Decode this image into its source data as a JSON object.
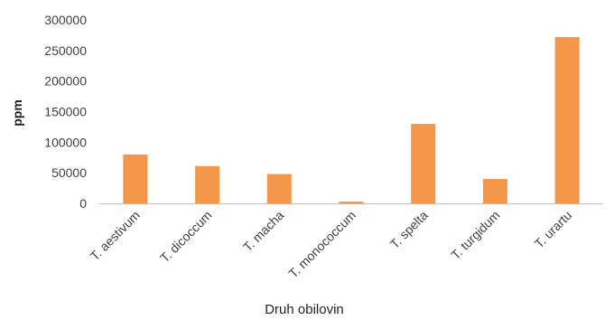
{
  "chart_data": {
    "type": "bar",
    "title": "",
    "xlabel": "Druh obilovin",
    "ylabel": "ppm",
    "ylim": [
      0,
      300000
    ],
    "y_ticks": [
      0,
      50000,
      100000,
      150000,
      200000,
      250000,
      300000
    ],
    "y_tick_labels": [
      "0",
      "50000",
      "100000",
      "150000",
      "200000",
      "250000",
      "300000"
    ],
    "categories": [
      "T. aestivum",
      "T. dicoccum",
      "T. macha",
      "T. monococcum",
      "T. spelta",
      "T. turgidum",
      "T. urartu"
    ],
    "values": [
      80000,
      61000,
      48000,
      3000,
      130000,
      40000,
      272000
    ],
    "bar_color": "#f4974a",
    "grid": false,
    "legend": "none"
  }
}
